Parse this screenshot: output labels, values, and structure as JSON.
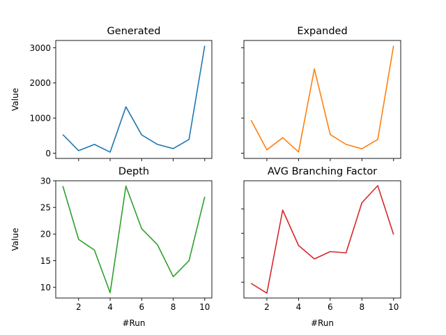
{
  "chart_data": [
    {
      "type": "line",
      "title": "Generated",
      "xlabel": "",
      "ylabel": "Value",
      "x": [
        1,
        2,
        3,
        4,
        5,
        6,
        7,
        8,
        9,
        10
      ],
      "values": [
        530,
        70,
        250,
        30,
        1320,
        520,
        250,
        130,
        390,
        3060
      ],
      "color": "#1f77b4",
      "xlim": [
        0.55,
        10.45
      ],
      "ylim": [
        -150,
        3210
      ],
      "yticks": [
        0,
        1000,
        2000,
        3000
      ],
      "ytick_labels": [
        "0",
        "1000",
        "2000",
        "3000"
      ],
      "xticks": [
        2,
        4,
        6,
        8,
        10
      ],
      "xtick_labels": [],
      "grid": false
    },
    {
      "type": "line",
      "title": "Expanded",
      "xlabel": "",
      "ylabel": "",
      "x": [
        1,
        2,
        3,
        4,
        5,
        6,
        7,
        8,
        9,
        10
      ],
      "values": [
        940,
        95,
        440,
        35,
        2400,
        530,
        250,
        125,
        390,
        3060
      ],
      "color": "#ff7f0e",
      "xlim": [
        0.55,
        10.45
      ],
      "ylim": [
        -150,
        3210
      ],
      "yticks": [
        0,
        1000,
        2000,
        3000
      ],
      "ytick_labels": [],
      "xticks": [
        2,
        4,
        6,
        8,
        10
      ],
      "xtick_labels": [],
      "grid": false
    },
    {
      "type": "line",
      "title": "Depth",
      "xlabel": "#Run",
      "ylabel": "Value",
      "x": [
        1,
        2,
        3,
        4,
        5,
        6,
        7,
        8,
        9,
        10
      ],
      "values": [
        29,
        19,
        17,
        9,
        29,
        21,
        18,
        12,
        15,
        27
      ],
      "color": "#2ca02c",
      "xlim": [
        0.55,
        10.45
      ],
      "ylim": [
        8,
        30
      ],
      "yticks": [
        10,
        15,
        20,
        25,
        30
      ],
      "ytick_labels": [
        "10",
        "15",
        "20",
        "25",
        "30"
      ],
      "xticks": [
        2,
        4,
        6,
        8,
        10
      ],
      "xtick_labels": [
        "2",
        "4",
        "6",
        "8",
        "10"
      ],
      "grid": false
    },
    {
      "type": "line",
      "title": "AVG Branching Factor",
      "xlabel": "#Run",
      "ylabel": "",
      "x": [
        1,
        2,
        3,
        4,
        5,
        6,
        7,
        8,
        9,
        10
      ],
      "values": [
        1.9,
        1.1,
        7.9,
        5.0,
        3.9,
        4.5,
        4.4,
        8.5,
        9.9,
        5.9
      ],
      "color": "#d62728",
      "xlim": [
        0.55,
        10.45
      ],
      "ylim": [
        0.7,
        10.3
      ],
      "yticks": [
        2,
        4,
        6,
        8
      ],
      "ytick_labels": [],
      "xticks": [
        2,
        4,
        6,
        8,
        10
      ],
      "xtick_labels": [
        "2",
        "4",
        "6",
        "8",
        "10"
      ],
      "grid": false
    }
  ]
}
